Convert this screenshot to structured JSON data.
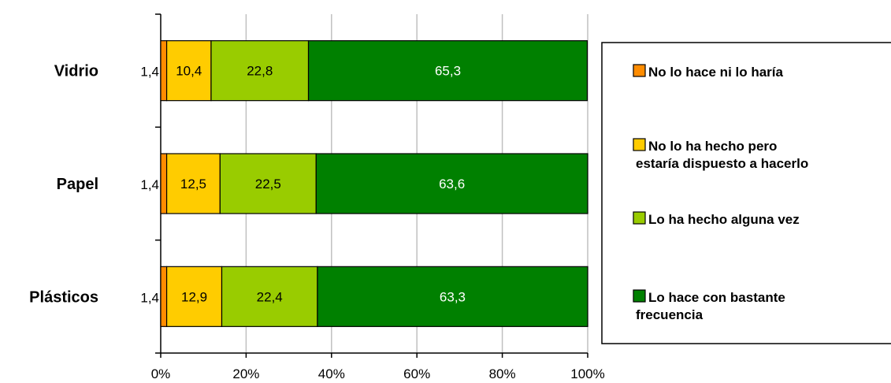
{
  "chart_data": {
    "type": "bar",
    "orientation": "horizontal",
    "stacked": true,
    "percent_scale": true,
    "categories": [
      "Vidrio",
      "Papel",
      "Plásticos"
    ],
    "series": [
      {
        "name": "No lo hace ni lo haría",
        "values": [
          1.4,
          1.4,
          1.4
        ],
        "labels": [
          "1,4",
          "1,4",
          "1,4"
        ],
        "color": "#FF8C00",
        "label_color": "#000000"
      },
      {
        "name": "No lo ha hecho pero estaría dispuesto a hacerlo",
        "values": [
          10.4,
          12.5,
          12.9
        ],
        "labels": [
          "10,4",
          "12,5",
          "12,9"
        ],
        "color": "#FFCC00",
        "label_color": "#000000"
      },
      {
        "name": "Lo ha hecho alguna vez",
        "values": [
          22.8,
          22.5,
          22.4
        ],
        "labels": [
          "22,8",
          "22,5",
          "22,4"
        ],
        "color": "#99CC00",
        "label_color": "#000000"
      },
      {
        "name": "Lo hace con bastante frecuencia",
        "values": [
          65.3,
          63.6,
          63.3
        ],
        "labels": [
          "65,3",
          "63,6",
          "63,3"
        ],
        "color": "#008000",
        "label_color": "#FFFFFF"
      }
    ],
    "xlim": [
      0,
      100
    ],
    "x_ticks": [
      "0%",
      "20%",
      "40%",
      "60%",
      "80%",
      "100%"
    ],
    "grid": true,
    "legend": {
      "position": "right",
      "items": [
        [
          "No lo hace ni lo haría"
        ],
        [
          "No lo ha hecho pero",
          "estaría dispuesto a hacerlo"
        ],
        [
          "Lo ha hecho alguna vez"
        ],
        [
          "Lo hace con bastante",
          "frecuencia"
        ]
      ]
    }
  }
}
